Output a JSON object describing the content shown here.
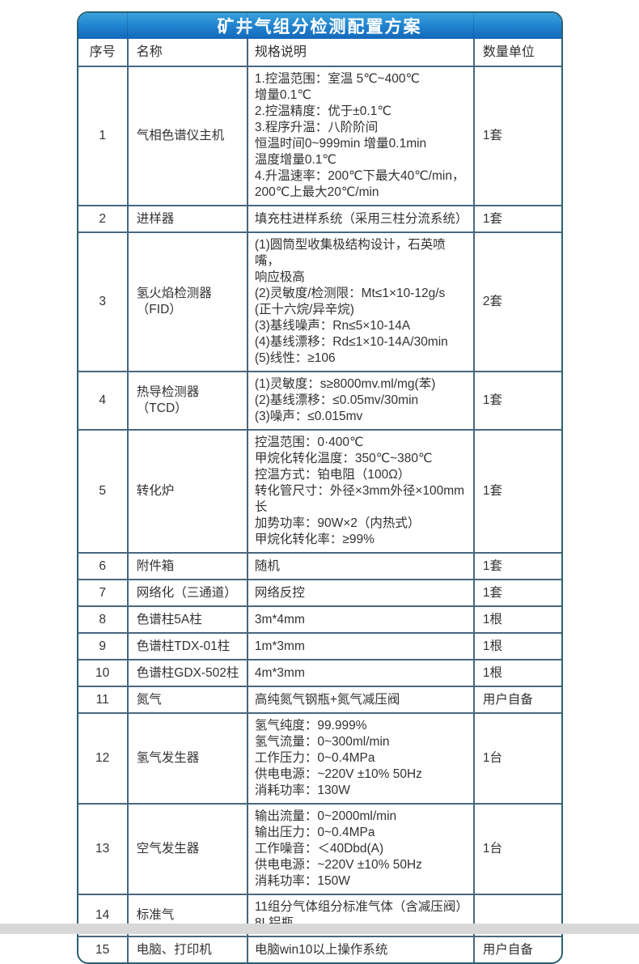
{
  "table": {
    "title": "矿井气组分检测配置方案",
    "accent_top": "#3aa2dc",
    "accent_bottom": "#1468b9",
    "outer_border_color": "#2c6173",
    "grid_color": "#48677f",
    "columns": [
      "序号",
      "名称",
      "规格说明",
      "数量单位"
    ],
    "rows": [
      {
        "no": "1",
        "name": "气相色谱仪主机",
        "spec": "1.控温范围：室温 5℃~400℃\n增量0.1℃\n2.控温精度：优于±0.1℃\n3.程序升温：八阶阶间\n恒温时间0~999min 增量0.1min\n温度增量0.1℃\n4.升温速率：200℃下最大40℃/min，\n200℃上最大20℃/min",
        "qty": "1套"
      },
      {
        "no": "2",
        "name": "进样器",
        "spec": "填充柱进样系统（采用三柱分流系统）",
        "qty": "1套"
      },
      {
        "no": "3",
        "name": "氢火焰检测器（FID）",
        "spec": "(1)圆筒型收集极结构设计，石英喷嘴，\n响应极高\n(2)灵敏度/检测限：Mt≤1×10-12g/s\n(正十六烷/异辛烷)\n(3)基线噪声：Rn≤5×10-14A\n(4)基线漂移：Rd≤1×10-14A/30min\n(5)线性：≥106",
        "qty": "2套"
      },
      {
        "no": "4",
        "name": "热导检测器（TCD）",
        "spec": "(1)灵敏度：s≥8000mv.ml/mg(苯)\n(2)基线漂移：≤0.05mv/30min\n(3)噪声：≤0.015mv",
        "qty": "1套"
      },
      {
        "no": "5",
        "name": "转化炉",
        "spec": "控温范围：0·400℃\n甲烷化转化温度：350℃~380℃\n控温方式：铂电阻（100Ω）\n转化管尺寸：外径×3mm外径×100mm长\n加势功率：90W×2（内热式）\n甲烷化转化率：≥99%",
        "qty": "1套"
      },
      {
        "no": "6",
        "name": "附件箱",
        "spec": "随机",
        "qty": "1套"
      },
      {
        "no": "7",
        "name": "网络化（三通道）",
        "spec": "网络反控",
        "qty": "1套"
      },
      {
        "no": "8",
        "name": "色谱柱5A柱",
        "spec": "3m*4mm",
        "qty": "1根"
      },
      {
        "no": "9",
        "name": "色谱柱TDX-01柱",
        "spec": "1m*3mm",
        "qty": "1根"
      },
      {
        "no": "10",
        "name": "色谱柱GDX-502柱",
        "spec": "4m*3mm",
        "qty": "1根"
      },
      {
        "no": "11",
        "name": "氮气",
        "spec": "高纯氮气钢瓶+氮气减压阀",
        "qty": "用户自备"
      },
      {
        "no": "12",
        "name": "氢气发生器",
        "spec": "氢气纯度：99.999%\n氢气流量：0~300ml/min\n工作压力：0~0.4MPa\n供电电源：~220V ±10% 50Hz\n消耗功率：130W",
        "qty": "1台"
      },
      {
        "no": "13",
        "name": "空气发生器",
        "spec": "输出流量：0~2000ml/min\n输出压力：0~0.4MPa\n工作噪音：＜40Dbd(A)\n供电电源：~220V ±10% 50Hz\n消耗功率：150W",
        "qty": "1台"
      },
      {
        "no": "14",
        "name": "标准气",
        "spec": "11组分气体组分标准气体（含减压阀）\n8L铝瓶",
        "qty": ""
      },
      {
        "no": "15",
        "name": "电脑、打印机",
        "spec": "电脑win10以上操作系统",
        "qty": "用户自备"
      }
    ]
  }
}
